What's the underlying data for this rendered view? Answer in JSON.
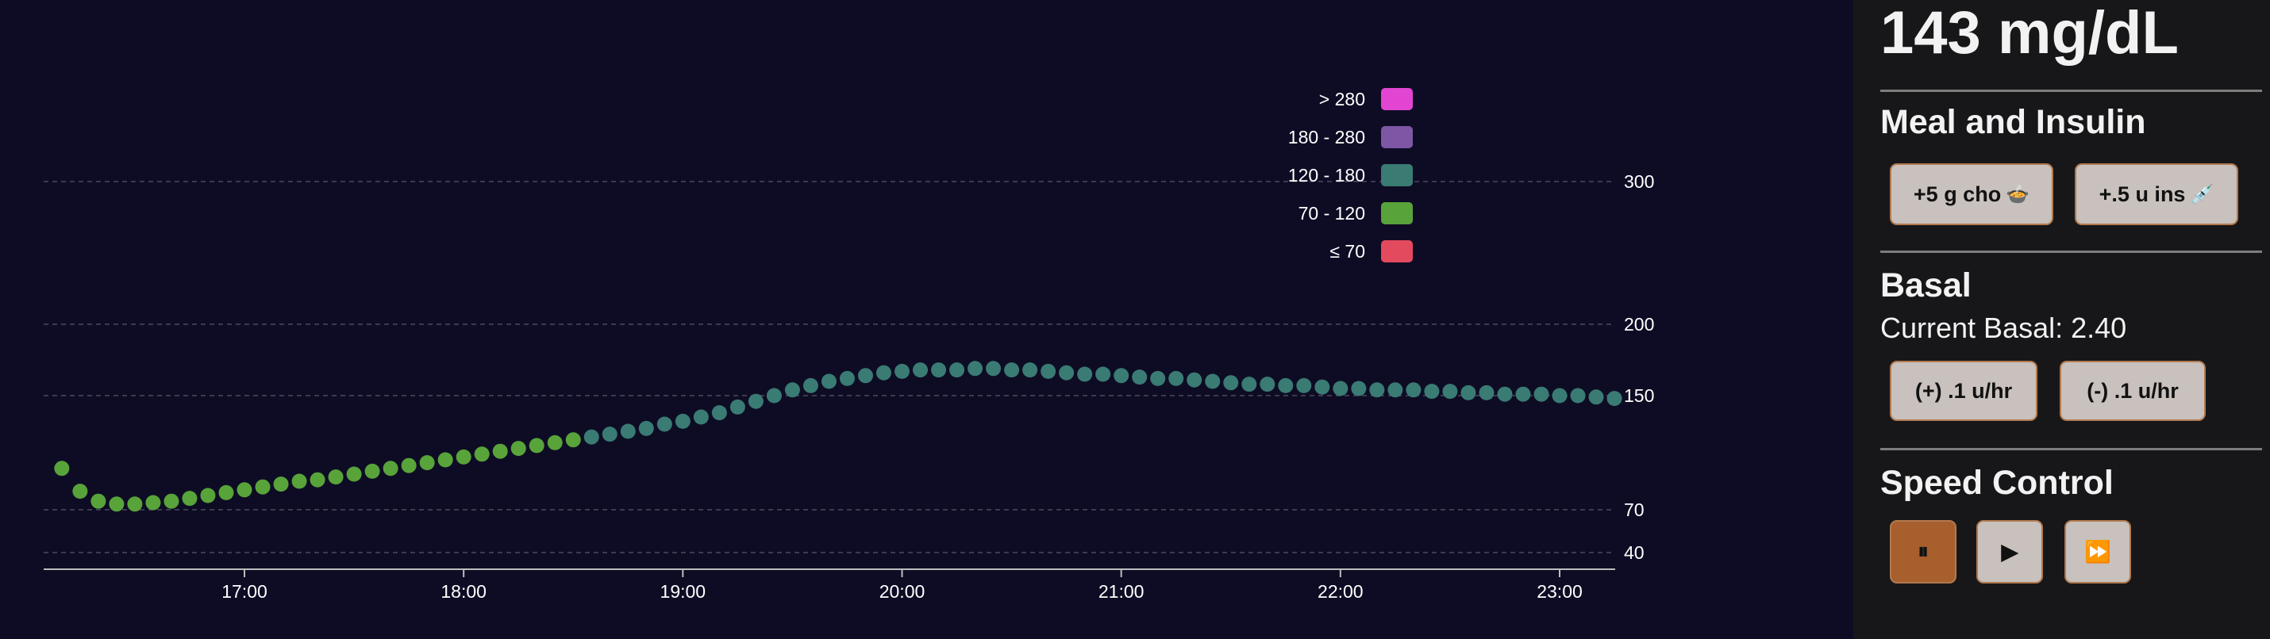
{
  "chart_data": {
    "type": "scatter",
    "title": "",
    "xlabel": "",
    "ylabel": "",
    "x_ticks": [
      "17:00",
      "18:00",
      "19:00",
      "20:00",
      "21:00",
      "22:00",
      "23:00"
    ],
    "y_gridlines": [
      40,
      70,
      150,
      200,
      300
    ],
    "y_tick_labels": [
      "40",
      "70",
      "150",
      "200",
      "300"
    ],
    "ylim": [
      20,
      380
    ],
    "xlim": [
      "16:05",
      "23:15"
    ],
    "grid": true,
    "legend_position": "top-right",
    "x": [
      "16:10",
      "16:15",
      "16:20",
      "16:25",
      "16:30",
      "16:35",
      "16:40",
      "16:45",
      "16:50",
      "16:55",
      "17:00",
      "17:05",
      "17:10",
      "17:15",
      "17:20",
      "17:25",
      "17:30",
      "17:35",
      "17:40",
      "17:45",
      "17:50",
      "17:55",
      "18:00",
      "18:05",
      "18:10",
      "18:15",
      "18:20",
      "18:25",
      "18:30",
      "18:35",
      "18:40",
      "18:45",
      "18:50",
      "18:55",
      "19:00",
      "19:05",
      "19:10",
      "19:15",
      "19:20",
      "19:25",
      "19:30",
      "19:35",
      "19:40",
      "19:45",
      "19:50",
      "19:55",
      "20:00",
      "20:05",
      "20:10",
      "20:15",
      "20:20",
      "20:25",
      "20:30",
      "20:35",
      "20:40",
      "20:45",
      "20:50",
      "20:55",
      "21:00",
      "21:05",
      "21:10",
      "21:15",
      "21:20",
      "21:25",
      "21:30",
      "21:35",
      "21:40",
      "21:45",
      "21:50",
      "21:55",
      "22:00",
      "22:05",
      "22:10",
      "22:15",
      "22:20",
      "22:25",
      "22:30",
      "22:35",
      "22:40",
      "22:45",
      "22:50",
      "22:55",
      "23:00",
      "23:05",
      "23:10",
      "23:15"
    ],
    "y": [
      99,
      83,
      76,
      74,
      74,
      75,
      76,
      78,
      80,
      82,
      84,
      86,
      88,
      90,
      91,
      93,
      95,
      97,
      99,
      101,
      103,
      105,
      107,
      109,
      111,
      113,
      115,
      117,
      119,
      121,
      123,
      125,
      127,
      130,
      132,
      135,
      138,
      142,
      146,
      150,
      154,
      157,
      160,
      162,
      164,
      166,
      167,
      168,
      168,
      168,
      169,
      169,
      168,
      168,
      167,
      166,
      165,
      165,
      164,
      163,
      162,
      162,
      161,
      160,
      159,
      158,
      158,
      157,
      157,
      156,
      155,
      155,
      154,
      154,
      154,
      153,
      153,
      152,
      152,
      151,
      151,
      151,
      150,
      150,
      149,
      148
    ],
    "legend": [
      {
        "label": "> 280",
        "color": "#e245d2"
      },
      {
        "label": "180 - 280",
        "color": "#7d57a6"
      },
      {
        "label": "120 - 180",
        "color": "#3a7b74"
      },
      {
        "label": "70 - 120",
        "color": "#58a33a"
      },
      {
        "label": "≤ 70",
        "color": "#e34a5d"
      }
    ],
    "thresholds": [
      70,
      120,
      180,
      280
    ]
  },
  "glucose_display": "143 mg/dL",
  "meal_insulin": {
    "title": "Meal and Insulin",
    "carb_button": "+5 g cho",
    "carb_icon": "🍲",
    "insulin_button": "+.5 u ins",
    "insulin_icon": "💉"
  },
  "basal": {
    "title": "Basal",
    "current": "Current Basal: 2.40",
    "increase_button": "(+) .1 u/hr",
    "decrease_button": "(-) .1 u/hr"
  },
  "speed": {
    "title": "Speed Control",
    "pause_icon": "⏸",
    "play_icon": "▶",
    "fast_icon": "⏩"
  }
}
